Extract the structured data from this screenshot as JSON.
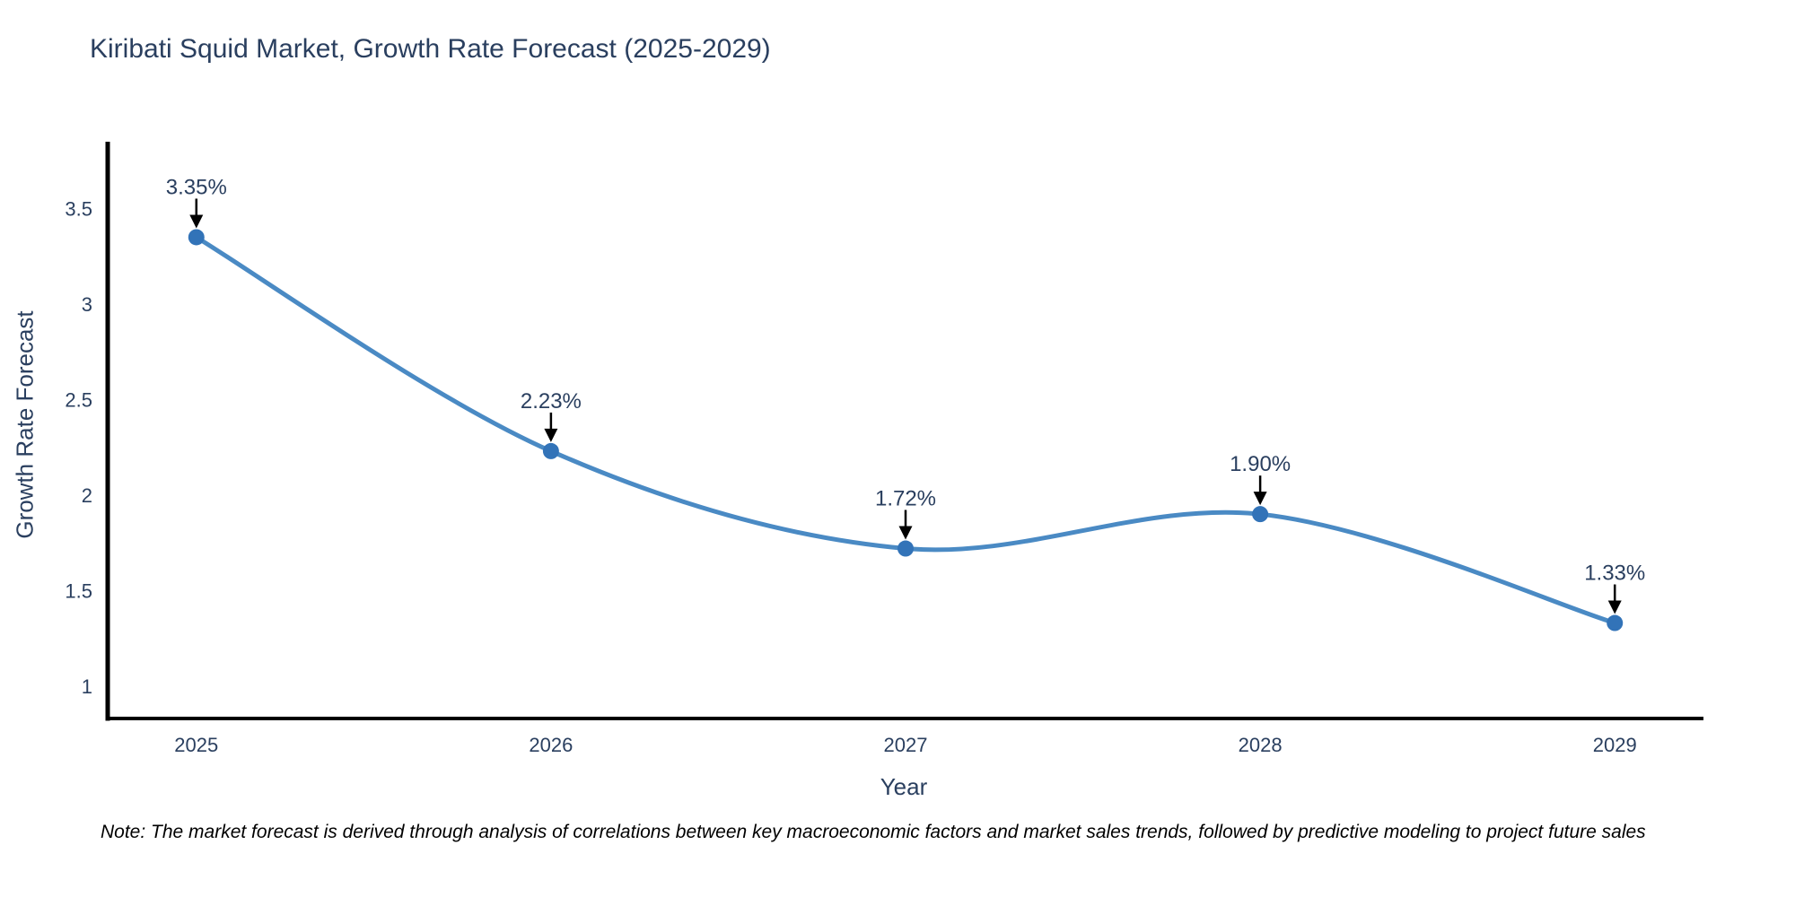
{
  "page": {
    "background": "#ffffff"
  },
  "chart_data": {
    "type": "line",
    "title": "Kiribati Squid Market, Growth Rate Forecast (2025-2029)",
    "xlabel": "Year",
    "ylabel": "Growth Rate Forecast",
    "x": [
      2025,
      2026,
      2027,
      2028,
      2029
    ],
    "series": [
      {
        "name": "Growth Rate Forecast",
        "values": [
          3.35,
          2.23,
          1.72,
          1.9,
          1.33
        ]
      }
    ],
    "point_labels": [
      "3.35%",
      "2.23%",
      "1.72%",
      "1.90%",
      "1.33%"
    ],
    "xticks": [
      2025,
      2026,
      2027,
      2028,
      2029
    ],
    "yticks": [
      1,
      1.5,
      2,
      2.5,
      3,
      3.5
    ],
    "xlim": [
      2024.75,
      2029.25
    ],
    "ylim": [
      0.83,
      3.85
    ],
    "grid": false,
    "legend": "none",
    "line_shape": "spline",
    "colors": {
      "line": "#4a8ac4",
      "marker": "#3273b8",
      "annotation_arrow": "#000000",
      "axis": "#000000",
      "text": "#2a3f5f",
      "note_text": "#000000"
    }
  },
  "note": "Note: The market forecast is derived through analysis of correlations between key macroeconomic factors and market sales trends, followed by predictive modeling to project future sales"
}
